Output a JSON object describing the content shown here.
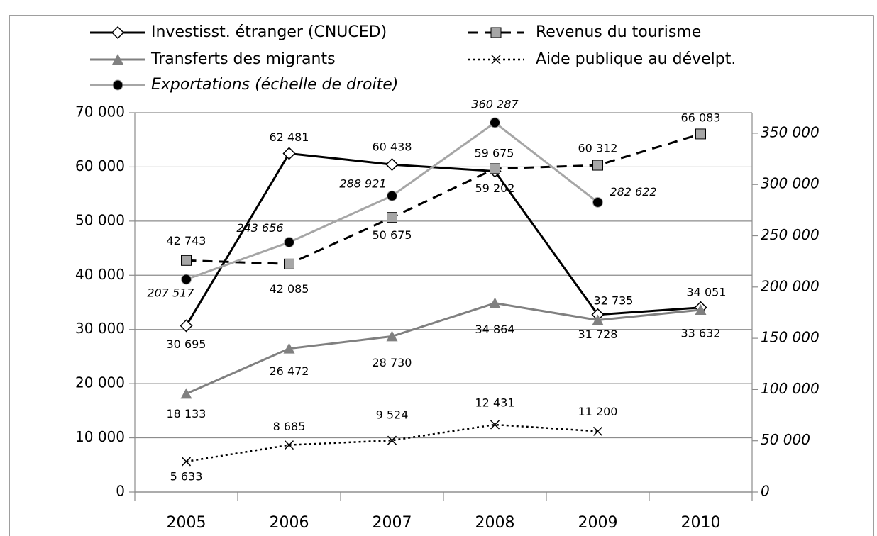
{
  "chart_data": {
    "type": "line",
    "categories": [
      "2005",
      "2006",
      "2007",
      "2008",
      "2009",
      "2010"
    ],
    "series": [
      {
        "name": "Investisst. étranger (CNUCED)",
        "color": "#000000",
        "dash": "solid",
        "marker": "diamond",
        "values": [
          30695,
          62481,
          60438,
          59202,
          32735,
          34051
        ],
        "value_labels": [
          "30 695",
          "62 481",
          "60 438",
          "59 202",
          "32 735",
          "34 051"
        ]
      },
      {
        "name": "Revenus du tourisme",
        "color": "#000000",
        "dash": "dashed",
        "marker": "square",
        "values": [
          42743,
          42085,
          50675,
          59675,
          60312,
          66083
        ],
        "value_labels": [
          "42 743",
          "42 085",
          "50 675",
          "59 675",
          "60 312",
          "66 083"
        ]
      },
      {
        "name": "Transferts des migrants",
        "color": "#808080",
        "dash": "solid",
        "marker": "triangle",
        "values": [
          18133,
          26472,
          28730,
          34864,
          31728,
          33632
        ],
        "value_labels": [
          "18 133",
          "26 472",
          "28 730",
          "34 864",
          "31 728",
          "33 632"
        ]
      },
      {
        "name": "Aide publique au dévelpt.",
        "color": "#000000",
        "dash": "dotted",
        "marker": "x",
        "values": [
          5633,
          8685,
          9524,
          12431,
          11200,
          null
        ],
        "value_labels": [
          "5 633",
          "8 685",
          "9 524",
          "12 431",
          "11 200",
          null
        ]
      },
      {
        "name": "Exportations (échelle de droite)",
        "color": "#a6a6a6",
        "dash": "solid",
        "marker": "circle",
        "axis": "y2",
        "values": [
          207517,
          243656,
          288921,
          360287,
          282622,
          null
        ],
        "value_labels": [
          "207 517",
          "243 656",
          "288 921",
          "360 287",
          "282 622",
          null
        ]
      }
    ],
    "ylim": [
      0,
      70000
    ],
    "yticks": [
      0,
      {
        "value": 10000,
        "label": "10 000"
      },
      {
        "value": 20000,
        "label": "20 000"
      },
      {
        "value": 30000,
        "label": "30 000"
      },
      {
        "value": 40000,
        "label": "40 000"
      },
      {
        "value": 50000,
        "label": "50 000"
      },
      {
        "value": 60000,
        "label": "60 000"
      },
      {
        "value": 70000,
        "label": "70 000"
      }
    ],
    "y2lim": [
      0,
      370000
    ],
    "y2ticks": [
      0,
      {
        "value": 50000,
        "label": "50 000"
      },
      {
        "value": 100000,
        "label": "100 000"
      },
      {
        "value": 150000,
        "label": "150 000"
      },
      {
        "value": 200000,
        "label": "200 000"
      },
      {
        "value": 250000,
        "label": "250 000"
      },
      {
        "value": 300000,
        "label": "300 000"
      },
      {
        "value": 350000,
        "label": "350 000"
      }
    ],
    "grid": true
  }
}
